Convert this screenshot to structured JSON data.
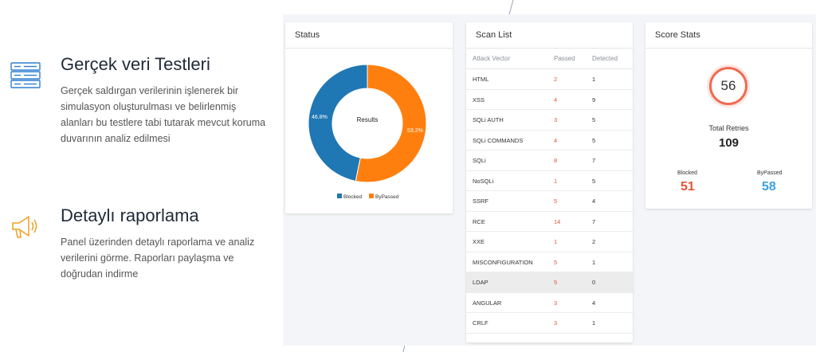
{
  "features": [
    {
      "title": "Gerçek veri Testleri",
      "description": "Gerçek saldırgan verilerinin işlenerek bir simulasyon oluşturulması ve belirlenmiş alanları bu testlere tabi tutarak mevcut koruma duvarının analiz edilmesi",
      "icon": "server-rack-icon"
    },
    {
      "title": "Detaylı raporlama",
      "description": "Panel üzerinden detaylı raporlama ve analiz verilerini görme. Raporları paylaşma ve doğrudan indirme",
      "icon": "megaphone-icon"
    }
  ],
  "status": {
    "title": "Status",
    "center_label": "Results",
    "blocked_pct_label": "46.8%",
    "bypassed_pct_label": "53.2%",
    "legend_blocked": "Blocked",
    "legend_bypassed": "ByPassed"
  },
  "chart_data": {
    "type": "pie",
    "title": "",
    "center_label": "Results",
    "categories": [
      "Blocked",
      "ByPassed"
    ],
    "values": [
      46.8,
      53.2
    ],
    "colors": [
      "#1f77b4",
      "#ff7f0e"
    ],
    "legend": "bottom"
  },
  "scan": {
    "title": "Scan List",
    "columns": [
      "Attack Vector",
      "Passed",
      "Detected"
    ],
    "rows": [
      {
        "vector": "HTML",
        "passed": "2",
        "detected": "1"
      },
      {
        "vector": "XSS",
        "passed": "4",
        "detected": "9"
      },
      {
        "vector": "SQLi AUTH",
        "passed": "3",
        "detected": "5"
      },
      {
        "vector": "SQLi COMMANDS",
        "passed": "4",
        "detected": "5"
      },
      {
        "vector": "SQLi",
        "passed": "8",
        "detected": "7"
      },
      {
        "vector": "NoSQLi",
        "passed": "1",
        "detected": "5"
      },
      {
        "vector": "SSRF",
        "passed": "5",
        "detected": "4"
      },
      {
        "vector": "RCE",
        "passed": "14",
        "detected": "7"
      },
      {
        "vector": "XXE",
        "passed": "1",
        "detected": "2"
      },
      {
        "vector": "MISCONFIGURATION",
        "passed": "5",
        "detected": "1"
      },
      {
        "vector": "LDAP",
        "passed": "5",
        "detected": "0"
      },
      {
        "vector": "ANGULAR",
        "passed": "3",
        "detected": "4"
      },
      {
        "vector": "CRLF",
        "passed": "3",
        "detected": "1"
      }
    ]
  },
  "score": {
    "title": "Score Stats",
    "score_value": "56",
    "total_label": "Total Retries",
    "total_value": "109",
    "blocked_label": "Blocked",
    "blocked_value": "51",
    "bypassed_label": "ByPassed",
    "bypassed_value": "58"
  },
  "colors": {
    "accent_blue": "#1f77b4",
    "accent_orange": "#ff7f0e",
    "passed_red": "#e8533a",
    "bypassed_blue": "#3aa0e8"
  }
}
